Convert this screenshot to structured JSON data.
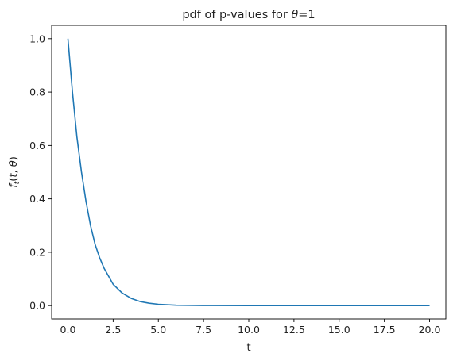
{
  "chart_data": {
    "type": "line",
    "title_prefix": "pdf of p-values for ",
    "title_symbol": "θ",
    "title_suffix": "=1",
    "xlabel": "t",
    "ylabel": {
      "f": "f",
      "sub": "t",
      "open": "(",
      "t": "t",
      "comma": ", ",
      "theta": "θ",
      "close": ")"
    },
    "xlim": [
      -0.9,
      20.9
    ],
    "ylim": [
      -0.05,
      1.05
    ],
    "x_ticks": [
      0.0,
      2.5,
      5.0,
      7.5,
      10.0,
      12.5,
      15.0,
      17.5,
      20.0
    ],
    "x_tick_labels": [
      "0.0",
      "2.5",
      "5.0",
      "7.5",
      "10.0",
      "12.5",
      "15.0",
      "17.5",
      "20.0"
    ],
    "y_ticks": [
      0.0,
      0.2,
      0.4,
      0.6,
      0.8,
      1.0
    ],
    "y_tick_labels": [
      "0.0",
      "0.2",
      "0.4",
      "0.6",
      "0.8",
      "1.0"
    ],
    "grid": false,
    "series": [
      {
        "color": "#1f77b4",
        "x": [
          0.0,
          0.25,
          0.5,
          0.75,
          1.0,
          1.25,
          1.5,
          1.75,
          2.0,
          2.5,
          3.0,
          3.5,
          4.0,
          4.5,
          5.0,
          6.0,
          7.0,
          8.0,
          10.0,
          12.0,
          14.0,
          16.0,
          18.0,
          20.0
        ],
        "y": [
          1.0,
          0.8,
          0.63,
          0.5,
          0.39,
          0.3,
          0.23,
          0.18,
          0.14,
          0.08,
          0.047,
          0.027,
          0.015,
          0.009,
          0.005,
          0.0015,
          0.0005,
          0.0002,
          0.0,
          0.0,
          0.0,
          0.0,
          0.0,
          0.0
        ]
      }
    ],
    "colors": {
      "line": "#1f77b4",
      "axes": "#000000",
      "text": "#222222"
    }
  }
}
